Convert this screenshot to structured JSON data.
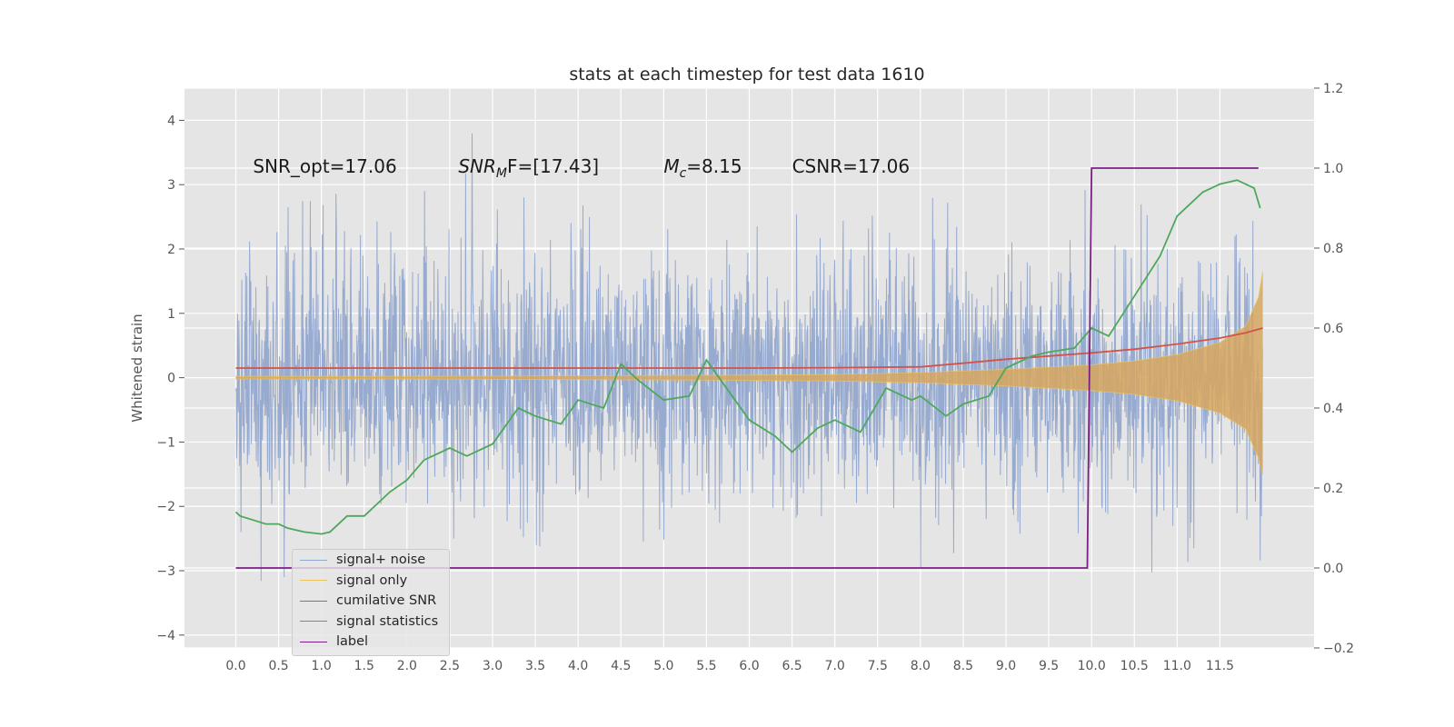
{
  "chart_data": {
    "type": "line",
    "title": "stats at each timestep for test data 1610",
    "ylabel": "Whitened strain",
    "xlabel": "",
    "xlim": [
      -0.6,
      12.6
    ],
    "ylim": [
      -4.2,
      4.5
    ],
    "y2lim": [
      -0.2,
      1.2
    ],
    "x_ticks": [
      "0.0",
      "0.5",
      "1.0",
      "1.5",
      "2.0",
      "2.5",
      "3.0",
      "3.5",
      "4.0",
      "4.5",
      "5.0",
      "5.5",
      "6.0",
      "6.5",
      "7.0",
      "7.5",
      "8.0",
      "8.5",
      "9.0",
      "9.5",
      "10.0",
      "10.5",
      "11.0",
      "11.5"
    ],
    "y_ticks": [
      "4",
      "3",
      "2",
      "1",
      "0",
      "−1",
      "−2",
      "−3",
      "−4"
    ],
    "y2_ticks": [
      "1.2",
      "1.0",
      "0.8",
      "0.6",
      "0.4",
      "0.2",
      "0.0",
      "−0.2"
    ],
    "grid": true,
    "legend_position": "lower-left",
    "annotations": [
      {
        "id": "snr_opt",
        "text": "SNR_opt=17.06",
        "x": 0.2,
        "y": 3.3
      },
      {
        "id": "snr_mf",
        "base": "SNR",
        "sub": "M",
        "rest": "F=[17.43]",
        "x": 2.6,
        "y": 3.3
      },
      {
        "id": "mc",
        "base": "M",
        "sub": "c",
        "rest": "=8.15",
        "x": 5.0,
        "y": 3.3
      },
      {
        "id": "csnr",
        "text": "CSNR=17.06",
        "x": 6.5,
        "y": 3.3
      }
    ],
    "series": [
      {
        "name": "signal+ noise",
        "color": "#92a7cd",
        "axis": "left",
        "style": "noise-band",
        "x_range": [
          0.0,
          12.0
        ],
        "sigma": 1.0,
        "seed": 1610
      },
      {
        "name": "signal only",
        "color": "#ecc35b",
        "fill": "#d8a760",
        "axis": "left",
        "style": "envelope",
        "x": [
          0.0,
          2.0,
          4.0,
          6.0,
          7.0,
          8.0,
          9.0,
          10.0,
          10.5,
          11.0,
          11.5,
          11.8,
          11.95,
          12.0
        ],
        "upper": [
          0.02,
          0.02,
          0.03,
          0.04,
          0.05,
          0.08,
          0.13,
          0.2,
          0.26,
          0.36,
          0.55,
          0.8,
          1.25,
          1.65
        ],
        "lower": [
          -0.02,
          -0.02,
          -0.03,
          -0.04,
          -0.05,
          -0.08,
          -0.13,
          -0.2,
          -0.26,
          -0.36,
          -0.55,
          -0.8,
          -1.25,
          -1.5
        ]
      },
      {
        "name": "cumilative SNR",
        "color": "#d1534b",
        "axis": "right",
        "x": [
          0.0,
          2.0,
          4.0,
          6.0,
          7.0,
          8.0,
          8.5,
          9.0,
          9.5,
          10.0,
          10.5,
          11.0,
          11.5,
          11.8,
          12.0
        ],
        "values": [
          0.5,
          0.5,
          0.5,
          0.5,
          0.501,
          0.503,
          0.512,
          0.522,
          0.53,
          0.538,
          0.547,
          0.56,
          0.575,
          0.588,
          0.6
        ]
      },
      {
        "name": "signal statistics",
        "color": "#4ea85c",
        "axis": "right",
        "x": [
          0.0,
          0.05,
          0.2,
          0.35,
          0.5,
          0.6,
          0.8,
          1.0,
          1.1,
          1.3,
          1.5,
          1.8,
          2.0,
          2.2,
          2.5,
          2.7,
          3.0,
          3.3,
          3.5,
          3.8,
          4.0,
          4.3,
          4.5,
          4.7,
          5.0,
          5.3,
          5.5,
          5.8,
          6.0,
          6.3,
          6.5,
          6.8,
          7.0,
          7.3,
          7.6,
          7.9,
          8.0,
          8.3,
          8.5,
          8.8,
          9.0,
          9.3,
          9.5,
          9.8,
          10.0,
          10.2,
          10.5,
          10.8,
          11.0,
          11.3,
          11.5,
          11.7,
          11.9,
          11.97
        ],
        "values": [
          0.14,
          0.13,
          0.12,
          0.11,
          0.11,
          0.1,
          0.09,
          0.085,
          0.09,
          0.13,
          0.13,
          0.19,
          0.22,
          0.27,
          0.3,
          0.28,
          0.31,
          0.4,
          0.38,
          0.36,
          0.42,
          0.4,
          0.51,
          0.47,
          0.42,
          0.43,
          0.52,
          0.43,
          0.37,
          0.33,
          0.29,
          0.35,
          0.37,
          0.34,
          0.45,
          0.42,
          0.43,
          0.38,
          0.41,
          0.43,
          0.5,
          0.53,
          0.54,
          0.55,
          0.6,
          0.58,
          0.68,
          0.78,
          0.88,
          0.94,
          0.96,
          0.97,
          0.95,
          0.9
        ]
      },
      {
        "name": "label",
        "color": "#7b1f86",
        "axis": "right",
        "x": [
          0.0,
          9.95,
          10.0,
          11.95
        ],
        "values": [
          0.0,
          0.0,
          1.0,
          1.0
        ]
      }
    ]
  }
}
